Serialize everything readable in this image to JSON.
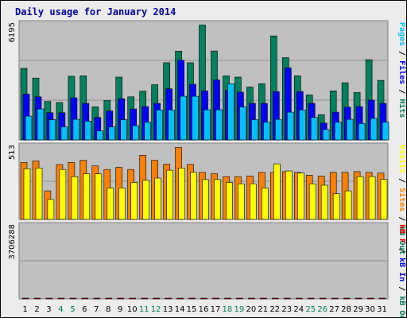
{
  "chart_data": {
    "type": "bar",
    "title": "Daily usage for January 2014",
    "days": [
      "1",
      "2",
      "3",
      "4",
      "5",
      "6",
      "7",
      "8",
      "9",
      "10",
      "11",
      "12",
      "13",
      "14",
      "15",
      "16",
      "17",
      "18",
      "19",
      "20",
      "21",
      "22",
      "23",
      "24",
      "25",
      "26",
      "27",
      "28",
      "29",
      "30",
      "31"
    ],
    "weekend_days": [
      "4",
      "5",
      "11",
      "12",
      "18",
      "19",
      "25",
      "26"
    ],
    "colors": {
      "hits": "#00805c",
      "files": "#0000ff",
      "pages": "#00c0ff",
      "sites": "#ff8000",
      "visits": "#ffff00",
      "kbytes": "#ff0000",
      "weekday_label": "#000000",
      "weekend_label": "#00805c",
      "title": "#0000a0"
    },
    "panels": [
      {
        "ymax_label": "6195",
        "ymax": 6195,
        "legend": [
          {
            "text": "Pages",
            "color": "#00c0ff"
          },
          {
            "text": "Files",
            "color": "#0000ff"
          },
          {
            "text": "Hits",
            "color": "#00805c"
          }
        ],
        "series": [
          {
            "key": "hits",
            "values": [
              3820,
              3300,
              2050,
              2000,
              3400,
              3420,
              1770,
              2100,
              3350,
              2300,
              2600,
              2950,
              4120,
              4740,
              4120,
              6130,
              4750,
              3420,
              3350,
              2820,
              3000,
              5550,
              4390,
              3420,
              2400,
              1350,
              2620,
              3050,
              2530,
              4280,
              3180
            ]
          },
          {
            "key": "files",
            "values": [
              2450,
              2300,
              1450,
              1450,
              2250,
              1950,
              1200,
              1550,
              2200,
              1650,
              1780,
              1950,
              2730,
              4250,
              2970,
              2620,
              3200,
              2650,
              2550,
              1950,
              1950,
              2580,
              3850,
              2580,
              1950,
              900,
              1480,
              1750,
              1780,
              2120,
              1950
            ]
          },
          {
            "key": "pages",
            "values": [
              1270,
              1650,
              1080,
              690,
              1100,
              1000,
              480,
              690,
              1080,
              760,
              950,
              1600,
              1600,
              2330,
              2330,
              1610,
              1610,
              3000,
              1760,
              1080,
              950,
              1100,
              1480,
              1600,
              1200,
              550,
              950,
              1100,
              880,
              1150,
              950
            ]
          }
        ]
      },
      {
        "ymax_label": "513",
        "ymax": 513,
        "legend": [
          {
            "text": "Visits",
            "color": "#ffff00"
          },
          {
            "text": "Sites",
            "color": "#ff8000"
          },
          {
            "text": "kB Out",
            "color": "#00805c"
          }
        ],
        "series": [
          {
            "key": "sites",
            "values": [
              400,
              410,
              200,
              385,
              400,
              415,
              375,
              350,
              365,
              350,
              450,
              415,
              387,
              505,
              386,
              330,
              320,
              300,
              300,
              305,
              330,
              330,
              335,
              330,
              310,
              305,
              330,
              330,
              335,
              330,
              325
            ]
          },
          {
            "key": "visits",
            "values": [
              355,
              360,
              140,
              350,
              300,
              320,
              320,
              220,
              220,
              260,
              275,
              290,
              345,
              360,
              330,
              280,
              280,
              260,
              250,
              250,
              220,
              390,
              340,
              325,
              250,
              240,
              180,
              200,
              300,
              300,
              280
            ]
          }
        ]
      },
      {
        "ymax_label": "3706288",
        "ymax": 3706288,
        "legend": [
          {
            "text": "kB F",
            "color": "#ff0000"
          },
          {
            "text": "kB In",
            "color": "#0000ff"
          },
          {
            "text": "kB Out",
            "color": "#00805c"
          }
        ],
        "series": [
          {
            "key": "kbytes",
            "values": [
              1100,
              1100,
              880,
              760,
              1300,
              900,
              620,
              1800,
              800,
              880,
              990,
              1760,
              1470,
              2100,
              760,
              1040,
              950,
              880,
              850,
              1000,
              1550,
              1220,
              3540,
              1610,
              840,
              560,
              1100,
              1050,
              1100,
              1400,
              620
            ]
          }
        ]
      }
    ]
  }
}
